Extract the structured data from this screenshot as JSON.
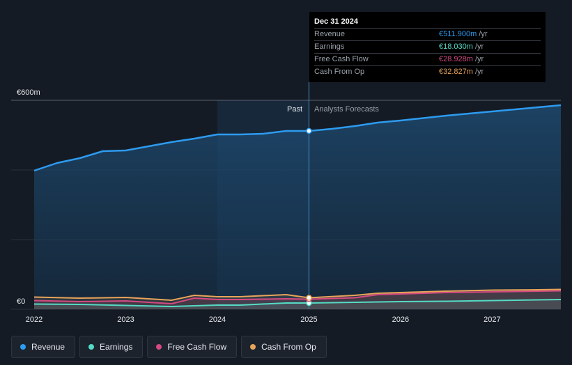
{
  "chart_data": {
    "type": "area",
    "currency_unit": "€",
    "y_ticks": [
      {
        "value": 600,
        "label": "€600m"
      },
      {
        "value": 0,
        "label": "€0"
      }
    ],
    "ylim": [
      0,
      600
    ],
    "xlim": [
      2022,
      2027.75
    ],
    "x_ticks": [
      {
        "value": 2022,
        "label": "2022"
      },
      {
        "value": 2023,
        "label": "2023"
      },
      {
        "value": 2024,
        "label": "2024"
      },
      {
        "value": 2025,
        "label": "2025"
      },
      {
        "value": 2026,
        "label": "2026"
      },
      {
        "value": 2027,
        "label": "2027"
      }
    ],
    "gridlines": true,
    "divider_x": 2025,
    "past_label": "Past",
    "forecast_label": "Analysts Forecasts",
    "series": [
      {
        "name": "Revenue",
        "color": "#2d9bf0",
        "x": [
          2022,
          2022.25,
          2022.5,
          2022.75,
          2023,
          2023.25,
          2023.5,
          2023.75,
          2024,
          2024.25,
          2024.5,
          2024.75,
          2025,
          2025.25,
          2025.5,
          2025.75,
          2026,
          2026.5,
          2027,
          2027.5,
          2027.75
        ],
        "values": [
          398,
          420,
          434,
          454,
          456,
          468,
          480,
          490,
          502,
          502,
          504,
          512,
          512,
          518,
          526,
          536,
          542,
          556,
          568,
          580,
          586
        ]
      },
      {
        "name": "Earnings",
        "color": "#55dbc6",
        "x": [
          2022,
          2022.5,
          2023,
          2023.5,
          2024,
          2024.25,
          2024.75,
          2025,
          2025.5,
          2026,
          2026.5,
          2027,
          2027.5,
          2027.75
        ],
        "values": [
          15,
          14,
          11,
          8,
          12,
          12,
          18,
          18,
          20,
          22,
          23,
          25,
          27,
          28
        ]
      },
      {
        "name": "Free Cash Flow",
        "color": "#d44a82",
        "x": [
          2022,
          2022.5,
          2023,
          2023.5,
          2023.75,
          2024,
          2024.25,
          2024.75,
          2025,
          2025.5,
          2025.75,
          2026,
          2026.5,
          2027,
          2027.5,
          2027.75
        ],
        "values": [
          25,
          22,
          24,
          16,
          32,
          28,
          28,
          30,
          29,
          33,
          42,
          44,
          48,
          50,
          52,
          53
        ]
      },
      {
        "name": "Cash From Op",
        "color": "#e8a45a",
        "x": [
          2022,
          2022.5,
          2023,
          2023.5,
          2023.75,
          2024,
          2024.25,
          2024.75,
          2025,
          2025.5,
          2025.75,
          2026,
          2026.5,
          2027,
          2027.5,
          2027.75
        ],
        "values": [
          35,
          32,
          34,
          26,
          40,
          36,
          36,
          42,
          33,
          40,
          46,
          48,
          52,
          55,
          56,
          57
        ]
      }
    ],
    "tooltip": {
      "date": "Dec 31 2024",
      "rows": [
        {
          "label": "Revenue",
          "value": "€511.900m",
          "unit": "/yr",
          "color": "#2d9bf0"
        },
        {
          "label": "Earnings",
          "value": "€18.030m",
          "unit": "/yr",
          "color": "#55dbc6"
        },
        {
          "label": "Free Cash Flow",
          "value": "€28.928m",
          "unit": "/yr",
          "color": "#d44a82"
        },
        {
          "label": "Cash From Op",
          "value": "€32.827m",
          "unit": "/yr",
          "color": "#e8a45a"
        }
      ]
    }
  },
  "legend": [
    {
      "label": "Revenue",
      "color": "#2d9bf0"
    },
    {
      "label": "Earnings",
      "color": "#55dbc6"
    },
    {
      "label": "Free Cash Flow",
      "color": "#d44a82"
    },
    {
      "label": "Cash From Op",
      "color": "#e8a45a"
    }
  ]
}
